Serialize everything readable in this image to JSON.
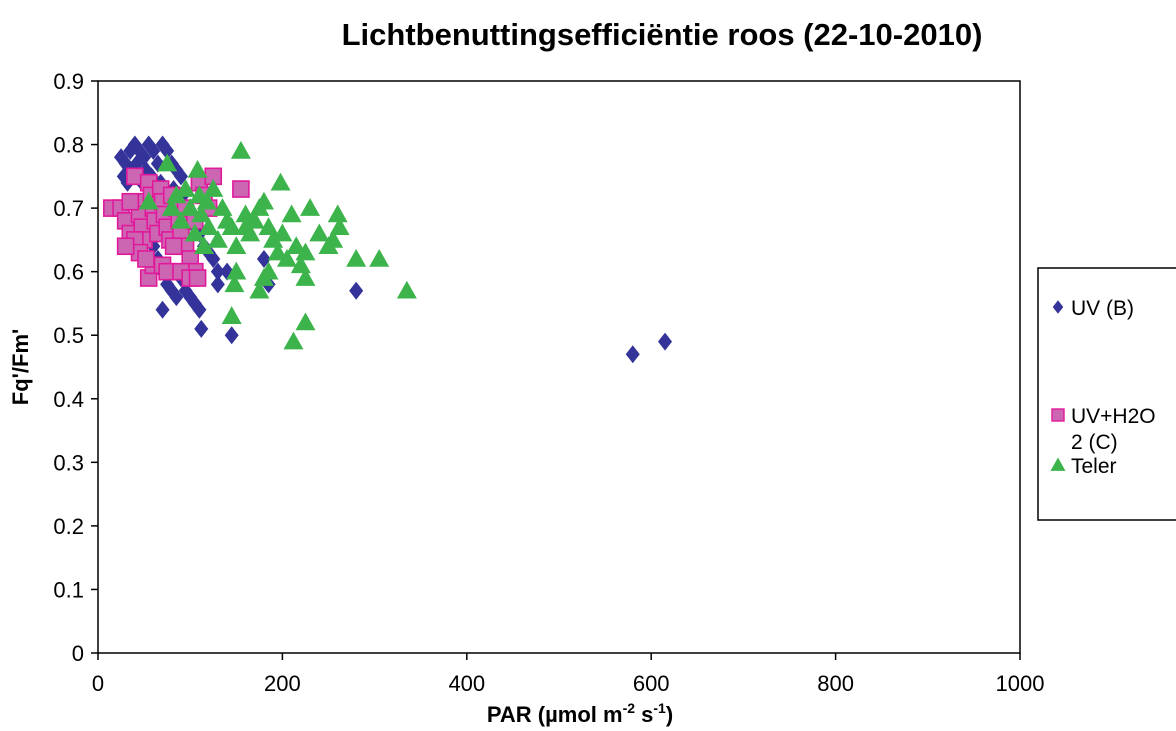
{
  "chart_data": {
    "type": "scatter",
    "title": "Lichtbenuttingsefficiëntie roos (22-10-2010)",
    "xlabel": "PAR (µmol m-2 s-1)",
    "xlabel_parts": {
      "main": "PAR (µmol m",
      "sup1": "-2",
      "mid": " s",
      "sup2": "-1",
      "end": ")"
    },
    "ylabel": "Fq'/Fm'",
    "xlim": [
      0,
      1000
    ],
    "ylim": [
      0,
      0.9
    ],
    "x_ticks": [
      "0",
      "200",
      "400",
      "600",
      "800",
      "1000"
    ],
    "y_ticks": [
      "0",
      "0.1",
      "0.2",
      "0.3",
      "0.4",
      "0.5",
      "0.6",
      "0.7",
      "0.8",
      "0.9"
    ],
    "grid": false,
    "legend_position": "right",
    "series": [
      {
        "name": "UV (B)",
        "legend_lines": [
          "UV (B)"
        ],
        "marker": "diamond",
        "color": "#33339a",
        "points": [
          [
            25,
            0.78
          ],
          [
            30,
            0.77
          ],
          [
            35,
            0.79
          ],
          [
            40,
            0.8
          ],
          [
            45,
            0.79
          ],
          [
            50,
            0.78
          ],
          [
            55,
            0.8
          ],
          [
            60,
            0.79
          ],
          [
            65,
            0.77
          ],
          [
            70,
            0.8
          ],
          [
            75,
            0.79
          ],
          [
            80,
            0.77
          ],
          [
            85,
            0.76
          ],
          [
            90,
            0.75
          ],
          [
            28,
            0.75
          ],
          [
            32,
            0.74
          ],
          [
            38,
            0.76
          ],
          [
            42,
            0.77
          ],
          [
            48,
            0.74
          ],
          [
            52,
            0.76
          ],
          [
            58,
            0.75
          ],
          [
            62,
            0.73
          ],
          [
            68,
            0.74
          ],
          [
            72,
            0.72
          ],
          [
            78,
            0.71
          ],
          [
            82,
            0.73
          ],
          [
            88,
            0.7
          ],
          [
            92,
            0.72
          ],
          [
            96,
            0.69
          ],
          [
            100,
            0.68
          ],
          [
            105,
            0.67
          ],
          [
            110,
            0.66
          ],
          [
            115,
            0.64
          ],
          [
            120,
            0.63
          ],
          [
            125,
            0.62
          ],
          [
            130,
            0.6
          ],
          [
            45,
            0.7
          ],
          [
            50,
            0.68
          ],
          [
            55,
            0.66
          ],
          [
            60,
            0.64
          ],
          [
            65,
            0.62
          ],
          [
            70,
            0.6
          ],
          [
            75,
            0.58
          ],
          [
            80,
            0.57
          ],
          [
            85,
            0.56
          ],
          [
            90,
            0.59
          ],
          [
            95,
            0.57
          ],
          [
            100,
            0.56
          ],
          [
            105,
            0.55
          ],
          [
            110,
            0.54
          ],
          [
            70,
            0.54
          ],
          [
            112,
            0.51
          ],
          [
            145,
            0.5
          ],
          [
            180,
            0.62
          ],
          [
            185,
            0.58
          ],
          [
            280,
            0.57
          ],
          [
            580,
            0.47
          ],
          [
            615,
            0.49
          ],
          [
            140,
            0.6
          ],
          [
            130,
            0.58
          ]
        ]
      },
      {
        "name": "UV+H2O 2 (C)",
        "legend_lines": [
          "UV+H2O",
          "2 (C)"
        ],
        "marker": "square",
        "color": "#cc66b3",
        "stroke": "#e0199a",
        "points": [
          [
            15,
            0.7
          ],
          [
            25,
            0.7
          ],
          [
            30,
            0.68
          ],
          [
            35,
            0.66
          ],
          [
            40,
            0.75
          ],
          [
            42,
            0.71
          ],
          [
            45,
            0.69
          ],
          [
            48,
            0.67
          ],
          [
            50,
            0.65
          ],
          [
            55,
            0.74
          ],
          [
            58,
            0.72
          ],
          [
            60,
            0.7
          ],
          [
            62,
            0.68
          ],
          [
            65,
            0.66
          ],
          [
            68,
            0.73
          ],
          [
            70,
            0.71
          ],
          [
            72,
            0.69
          ],
          [
            75,
            0.67
          ],
          [
            78,
            0.65
          ],
          [
            80,
            0.72
          ],
          [
            85,
            0.7
          ],
          [
            88,
            0.68
          ],
          [
            90,
            0.66
          ],
          [
            95,
            0.64
          ],
          [
            100,
            0.62
          ],
          [
            105,
            0.6
          ],
          [
            110,
            0.74
          ],
          [
            115,
            0.72
          ],
          [
            120,
            0.7
          ],
          [
            125,
            0.75
          ],
          [
            40,
            0.65
          ],
          [
            45,
            0.63
          ],
          [
            55,
            0.59
          ],
          [
            60,
            0.61
          ],
          [
            70,
            0.61
          ],
          [
            75,
            0.6
          ],
          [
            90,
            0.6
          ],
          [
            100,
            0.59
          ],
          [
            108,
            0.59
          ],
          [
            30,
            0.64
          ],
          [
            35,
            0.71
          ],
          [
            52,
            0.62
          ],
          [
            82,
            0.64
          ],
          [
            155,
            0.73
          ],
          [
            95,
            0.7
          ],
          [
            105,
            0.68
          ]
        ]
      },
      {
        "name": "Teler",
        "legend_lines": [
          "Teler"
        ],
        "marker": "triangle",
        "color": "#3cb44b",
        "points": [
          [
            55,
            0.71
          ],
          [
            75,
            0.77
          ],
          [
            80,
            0.7
          ],
          [
            85,
            0.72
          ],
          [
            90,
            0.68
          ],
          [
            95,
            0.73
          ],
          [
            100,
            0.7
          ],
          [
            105,
            0.66
          ],
          [
            108,
            0.76
          ],
          [
            110,
            0.72
          ],
          [
            112,
            0.69
          ],
          [
            115,
            0.64
          ],
          [
            118,
            0.71
          ],
          [
            120,
            0.67
          ],
          [
            125,
            0.73
          ],
          [
            130,
            0.65
          ],
          [
            135,
            0.7
          ],
          [
            140,
            0.68
          ],
          [
            145,
            0.67
          ],
          [
            150,
            0.64
          ],
          [
            155,
            0.79
          ],
          [
            160,
            0.69
          ],
          [
            165,
            0.66
          ],
          [
            170,
            0.68
          ],
          [
            175,
            0.7
          ],
          [
            180,
            0.71
          ],
          [
            185,
            0.67
          ],
          [
            190,
            0.65
          ],
          [
            195,
            0.63
          ],
          [
            198,
            0.74
          ],
          [
            200,
            0.66
          ],
          [
            205,
            0.62
          ],
          [
            210,
            0.69
          ],
          [
            215,
            0.64
          ],
          [
            220,
            0.61
          ],
          [
            225,
            0.59
          ],
          [
            230,
            0.7
          ],
          [
            240,
            0.66
          ],
          [
            250,
            0.64
          ],
          [
            255,
            0.65
          ],
          [
            260,
            0.69
          ],
          [
            262,
            0.67
          ],
          [
            280,
            0.62
          ],
          [
            305,
            0.62
          ],
          [
            335,
            0.57
          ],
          [
            145,
            0.53
          ],
          [
            148,
            0.58
          ],
          [
            175,
            0.57
          ],
          [
            180,
            0.59
          ],
          [
            185,
            0.6
          ],
          [
            212,
            0.49
          ],
          [
            225,
            0.52
          ],
          [
            150,
            0.6
          ],
          [
            225,
            0.63
          ],
          [
            160,
            0.67
          ]
        ]
      }
    ]
  }
}
